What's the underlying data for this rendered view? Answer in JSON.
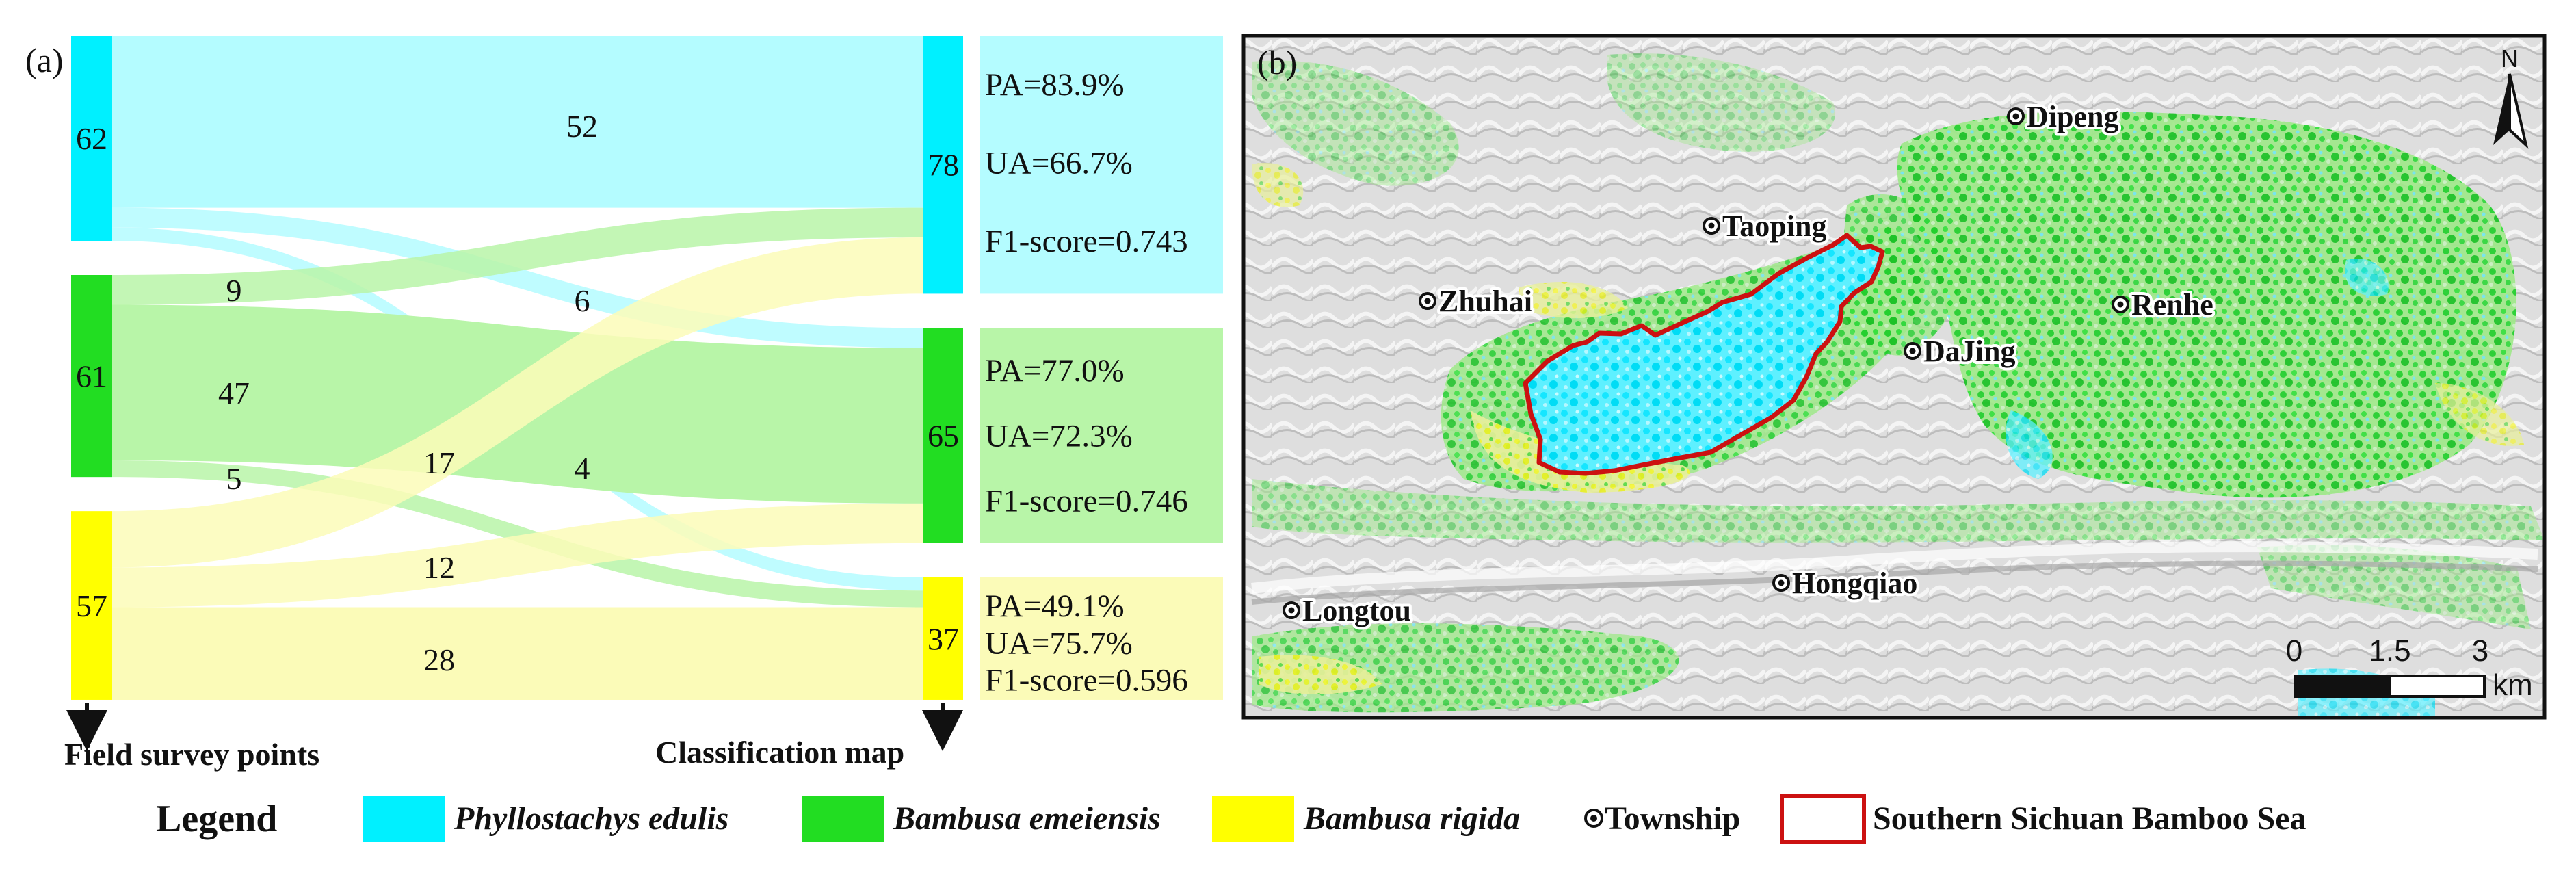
{
  "panel_a_label": "(a)",
  "panel_b_label": "(b)",
  "colors": {
    "phyllostachys": "#00f0ff",
    "emeiensis": "#22dd22",
    "rigida": "#ffff00",
    "phyllostachys_light": "#b4fcff",
    "emeiensis_light": "#b8f5a8",
    "rigida_light": "#fbfbb8",
    "boundary": "#cc1111"
  },
  "sankey": {
    "left_axis_label": "Field survey points",
    "right_axis_label": "Classification map",
    "left_nodes": [
      {
        "key": "phyllostachys",
        "label": "62",
        "value": 62
      },
      {
        "key": "emeiensis",
        "label": "61",
        "value": 61
      },
      {
        "key": "rigida",
        "label": "57",
        "value": 57
      }
    ],
    "right_nodes": [
      {
        "key": "phyllostachys",
        "label": "78",
        "value": 78
      },
      {
        "key": "emeiensis",
        "label": "65",
        "value": 65
      },
      {
        "key": "rigida",
        "label": "37",
        "value": 37
      }
    ],
    "flows": [
      {
        "from": "phyllostachys",
        "to": "phyllostachys",
        "value": 52,
        "label": "52"
      },
      {
        "from": "phyllostachys",
        "to": "emeiensis",
        "value": 6,
        "label": "6"
      },
      {
        "from": "phyllostachys",
        "to": "rigida",
        "value": 4,
        "label": "4"
      },
      {
        "from": "emeiensis",
        "to": "phyllostachys",
        "value": 9,
        "label": "9"
      },
      {
        "from": "emeiensis",
        "to": "emeiensis",
        "value": 47,
        "label": "47"
      },
      {
        "from": "emeiensis",
        "to": "rigida",
        "value": 5,
        "label": "5"
      },
      {
        "from": "rigida",
        "to": "phyllostachys",
        "value": 17,
        "label": "17"
      },
      {
        "from": "rigida",
        "to": "emeiensis",
        "value": 12,
        "label": "12"
      },
      {
        "from": "rigida",
        "to": "rigida",
        "value": 28,
        "label": "28"
      }
    ]
  },
  "accuracy": [
    {
      "key": "phyllostachys",
      "pa": "PA=83.9%",
      "ua": "UA=66.7%",
      "f1": "F1-score=0.743"
    },
    {
      "key": "emeiensis",
      "pa": "PA=77.0%",
      "ua": "UA=72.3%",
      "f1": "F1-score=0.746"
    },
    {
      "key": "rigida",
      "pa": "PA=49.1%",
      "ua": "UA=75.7%",
      "f1": "F1-score=0.596"
    }
  ],
  "map": {
    "north_label": "N",
    "townships": [
      "Dipeng",
      "Taoping",
      "Zhuhai",
      "Renhe",
      "DaJing",
      "Hongqiao",
      "Longtou"
    ],
    "scale_labels": [
      "0",
      "1.5",
      "3"
    ],
    "scale_unit": "km"
  },
  "legend": {
    "title": "Legend",
    "items": [
      {
        "key": "phyllostachys",
        "label": "Phyllostachys edulis"
      },
      {
        "key": "emeiensis",
        "label": "Bambusa emeiensis"
      },
      {
        "key": "rigida",
        "label": "Bambusa rigida"
      }
    ],
    "township_label": "Township",
    "boundary_label": "Southern Sichuan Bamboo Sea"
  }
}
